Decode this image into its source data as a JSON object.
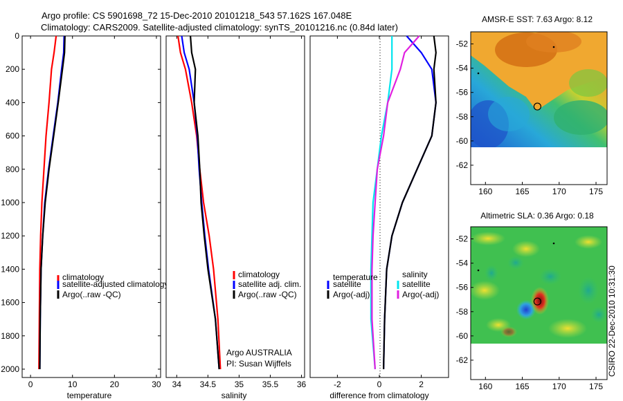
{
  "header": {
    "title_line1": "Argo profile: CS 5901698_72 15-Dec-2010 20101218_543 57.162S 167.048E",
    "title_line2": "Climatology: CARS2009. Satellite-adjusted climatology: synTS_20101216.nc (0.84d later)"
  },
  "credit": "CSIRO 22-Dec-2010 10:31:30",
  "colors": {
    "climatology": "#ff0000",
    "satellite": "#0000ff",
    "argo": "#000000",
    "sat_salinity": "#00e5ee",
    "argo_salinity": "#e020e0"
  },
  "chart_data": [
    {
      "type": "line",
      "panel": "temperature",
      "xlabel": "temperature",
      "ylabel": "",
      "xlim": [
        -2,
        31
      ],
      "ylim": [
        2050,
        0
      ],
      "xticks": [
        "0",
        "10",
        "20",
        "30"
      ],
      "yticks": [
        "0",
        "200",
        "400",
        "600",
        "800",
        "1000",
        "1200",
        "1400",
        "1600",
        "1800",
        "2000"
      ],
      "legend": "bottom-right",
      "series": [
        {
          "name": "climatology",
          "color": "#ff0000",
          "x": [
            6.1,
            5.6,
            5.0,
            4.4,
            3.7,
            3.2,
            2.7,
            2.4,
            2.2,
            2.1,
            2.0
          ],
          "y": [
            0,
            100,
            200,
            400,
            600,
            800,
            1000,
            1200,
            1400,
            1700,
            2000
          ]
        },
        {
          "name": "satellite-adjusted climatology",
          "color": "#0000ff",
          "x": [
            8.0,
            7.9,
            7.4,
            6.5,
            5.4,
            4.3,
            3.4,
            2.9,
            2.5,
            2.3,
            2.2
          ],
          "y": [
            0,
            100,
            200,
            400,
            600,
            800,
            1000,
            1200,
            1400,
            1700,
            2000
          ]
        },
        {
          "name": "Argo(..raw -QC)",
          "color": "#000000",
          "x": [
            8.2,
            8.1,
            7.6,
            6.6,
            5.5,
            4.4,
            3.5,
            2.9,
            2.5,
            2.3,
            2.2
          ],
          "y": [
            0,
            100,
            200,
            400,
            600,
            800,
            1000,
            1200,
            1400,
            1700,
            2000
          ]
        }
      ],
      "annotation": ""
    },
    {
      "type": "line",
      "panel": "salinity",
      "xlabel": "salinity",
      "ylabel": "",
      "xlim": [
        33.83,
        36.05
      ],
      "ylim": [
        2050,
        0
      ],
      "xticks": [
        "34",
        "34.5",
        "35",
        "35.5",
        "36"
      ],
      "legend": "bottom-right",
      "series": [
        {
          "name": "climatology",
          "color": "#ff0000",
          "x": [
            34.02,
            34.06,
            34.14,
            34.24,
            34.32,
            34.37,
            34.43,
            34.52,
            34.59,
            34.66,
            34.7
          ],
          "y": [
            0,
            100,
            200,
            400,
            600,
            800,
            1000,
            1200,
            1400,
            1700,
            2000
          ]
        },
        {
          "name": "satellite adj. clim.",
          "color": "#0000ff",
          "x": [
            34.08,
            34.12,
            34.2,
            34.28,
            34.33,
            34.36,
            34.4,
            34.45,
            34.51,
            34.62,
            34.68
          ],
          "y": [
            0,
            100,
            200,
            400,
            600,
            800,
            1000,
            1200,
            1400,
            1700,
            2000
          ]
        },
        {
          "name": "Argo(..raw -QC)",
          "color": "#000000",
          "x": [
            34.22,
            34.24,
            34.3,
            34.28,
            34.34,
            34.37,
            34.39,
            34.44,
            34.5,
            34.62,
            34.68
          ],
          "y": [
            0,
            100,
            200,
            400,
            600,
            800,
            1000,
            1200,
            1400,
            1700,
            2000
          ]
        }
      ],
      "annotation_line1": "Argo AUSTRALIA",
      "annotation_line2": "PI: Susan Wijffels"
    },
    {
      "type": "line",
      "panel": "difference",
      "xlabel": "difference from climatology",
      "ylabel": "",
      "xlim": [
        -3.3,
        3.3
      ],
      "ylim": [
        2050,
        0
      ],
      "xticks": [
        "-2",
        "0",
        "2"
      ],
      "zero_line": "dotted",
      "legend": "bottom-right",
      "legend_headers": [
        "temperature",
        "salinity"
      ],
      "series": [
        {
          "name": "satellite",
          "group": "temperature",
          "color": "#0000ff",
          "x": [
            1.3,
            2.0,
            2.5,
            2.7,
            2.5,
            1.8,
            1.1,
            0.6,
            0.35,
            0.25,
            0.2
          ],
          "y": [
            0,
            100,
            200,
            400,
            600,
            800,
            1000,
            1200,
            1400,
            1700,
            2000
          ]
        },
        {
          "name": "Argo(-adj)",
          "group": "temperature",
          "color": "#000000",
          "x": [
            2.6,
            2.7,
            2.6,
            2.7,
            2.5,
            1.8,
            1.1,
            0.6,
            0.35,
            0.25,
            0.2
          ],
          "y": [
            0,
            100,
            200,
            400,
            600,
            800,
            1000,
            1200,
            1400,
            1700,
            2000
          ]
        },
        {
          "name": "satellite",
          "group": "salinity",
          "color": "#00e5ee",
          "x": [
            0.6,
            0.6,
            0.6,
            0.4,
            0.1,
            -0.1,
            -0.3,
            -0.35,
            -0.4,
            -0.4,
            -0.2
          ],
          "y": [
            0,
            100,
            200,
            400,
            600,
            800,
            1000,
            1200,
            1400,
            1700,
            2000
          ]
        },
        {
          "name": "Argo(-adj)",
          "group": "salinity",
          "color": "#e020e0",
          "x": [
            1.9,
            1.2,
            1.0,
            0.4,
            0.2,
            -0.1,
            -0.2,
            -0.3,
            -0.35,
            -0.35,
            -0.2
          ],
          "y": [
            0,
            100,
            200,
            400,
            600,
            800,
            1000,
            1200,
            1400,
            1700,
            2000
          ]
        }
      ]
    },
    {
      "type": "heatmap",
      "panel": "map-top",
      "title": "AMSR-E SST: 7.63 Argo: 8.12",
      "xlim": [
        158,
        176.5
      ],
      "ylim": [
        -63.6,
        -51
      ],
      "xticks": [
        "160",
        "165",
        "170",
        "175"
      ],
      "yticks": [
        "-52",
        "-54",
        "-56",
        "-58",
        "-60",
        "-62"
      ],
      "data_extent": [
        158,
        176.5,
        -60.1,
        -51
      ],
      "marker": {
        "lon": 167.048,
        "lat": -57.162
      }
    },
    {
      "type": "heatmap",
      "panel": "map-bottom",
      "title": "Altimetric SLA: 0.36 Argo: 0.18",
      "xlim": [
        158,
        176.5
      ],
      "ylim": [
        -63.6,
        -51
      ],
      "xticks": [
        "160",
        "165",
        "170",
        "175"
      ],
      "yticks": [
        "-52",
        "-54",
        "-56",
        "-58",
        "-60",
        "-62"
      ],
      "data_extent": [
        158,
        176.5,
        -60.1,
        -51
      ],
      "marker": {
        "lon": 167.048,
        "lat": -57.162
      }
    }
  ]
}
